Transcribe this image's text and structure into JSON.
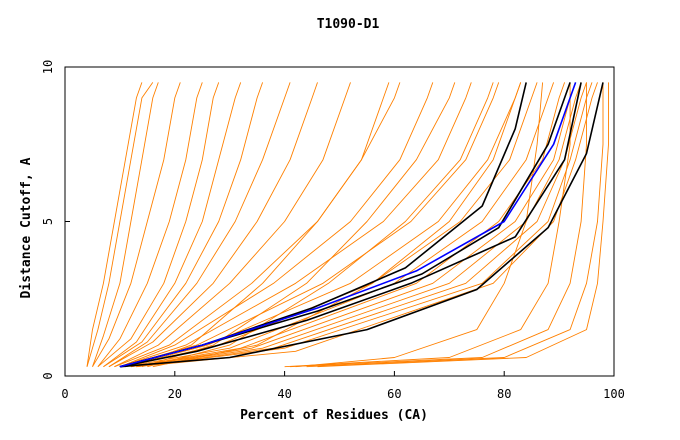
{
  "chart_data": {
    "type": "line",
    "title": "T1090-D1",
    "xlabel": "Percent of Residues (CA)",
    "ylabel": "Distance Cutoff, A",
    "xlim": [
      0,
      100
    ],
    "ylim": [
      0,
      10
    ],
    "x_ticks": [
      0,
      20,
      40,
      60,
      80,
      100
    ],
    "y_ticks": [
      0,
      5,
      10
    ],
    "grid": false,
    "legend": "none",
    "colors": {
      "models": "#ff8000",
      "highlight_a": "#000000",
      "highlight_b": "#0000ff"
    },
    "series": [
      {
        "group": "models",
        "x": [
          4,
          5,
          7,
          9,
          11,
          13,
          14
        ],
        "y": [
          0.3,
          1.5,
          3,
          5,
          7,
          9,
          9.5
        ]
      },
      {
        "group": "models",
        "x": [
          4,
          6,
          8,
          10,
          12,
          14,
          16
        ],
        "y": [
          0.3,
          1.5,
          3,
          5,
          7,
          9,
          9.5
        ]
      },
      {
        "group": "models",
        "x": [
          5,
          7,
          10,
          12,
          14,
          16,
          17
        ],
        "y": [
          0.3,
          1.3,
          3,
          5,
          7,
          9,
          9.5
        ]
      },
      {
        "group": "models",
        "x": [
          5,
          8,
          12,
          15,
          18,
          20,
          21
        ],
        "y": [
          0.3,
          1.2,
          3,
          5,
          7,
          9,
          9.5
        ]
      },
      {
        "group": "models",
        "x": [
          6,
          10,
          15,
          19,
          22,
          24,
          25
        ],
        "y": [
          0.3,
          1.2,
          3,
          5,
          7,
          9,
          9.5
        ]
      },
      {
        "group": "models",
        "x": [
          6,
          12,
          18,
          22,
          25,
          27,
          28
        ],
        "y": [
          0.3,
          1.2,
          3,
          5,
          7,
          9,
          9.5
        ]
      },
      {
        "group": "models",
        "x": [
          7,
          13,
          20,
          25,
          28,
          31,
          32
        ],
        "y": [
          0.3,
          1.1,
          3,
          5,
          7,
          9,
          9.5
        ]
      },
      {
        "group": "models",
        "x": [
          7,
          14,
          22,
          28,
          32,
          35,
          36
        ],
        "y": [
          0.3,
          1.1,
          3,
          5,
          7,
          9,
          9.5
        ]
      },
      {
        "group": "models",
        "x": [
          8,
          15,
          24,
          31,
          36,
          40,
          41
        ],
        "y": [
          0.3,
          1.1,
          3,
          5,
          7,
          9,
          9.5
        ]
      },
      {
        "group": "models",
        "x": [
          8,
          16,
          27,
          35,
          41,
          45,
          46
        ],
        "y": [
          0.3,
          1.1,
          3,
          5,
          7,
          9,
          9.5
        ]
      },
      {
        "group": "models",
        "x": [
          9,
          17,
          30,
          40,
          47,
          51,
          52
        ],
        "y": [
          0.3,
          1.0,
          3,
          5,
          7,
          9,
          9.5
        ]
      },
      {
        "group": "models",
        "x": [
          9,
          19,
          34,
          46,
          54,
          58,
          59
        ],
        "y": [
          0.3,
          1.0,
          3,
          5,
          7,
          9,
          9.5
        ]
      },
      {
        "group": "models",
        "x": [
          10,
          20,
          38,
          52,
          61,
          66,
          67
        ],
        "y": [
          0.3,
          1.0,
          3,
          5,
          7,
          9,
          9.5
        ]
      },
      {
        "group": "models",
        "x": [
          10,
          22,
          42,
          58,
          68,
          73,
          74
        ],
        "y": [
          0.3,
          1.0,
          3,
          5,
          7,
          9,
          9.5
        ]
      },
      {
        "group": "models",
        "x": [
          10,
          24,
          47,
          63,
          73,
          78,
          79
        ],
        "y": [
          0.3,
          1.0,
          3,
          5,
          7,
          9,
          9.5
        ]
      },
      {
        "group": "models",
        "x": [
          11,
          26,
          52,
          68,
          77,
          82,
          83
        ],
        "y": [
          0.3,
          1.0,
          3,
          5,
          7,
          9,
          9.5
        ]
      },
      {
        "group": "models",
        "x": [
          11,
          28,
          56,
          72,
          81,
          85,
          86
        ],
        "y": [
          0.3,
          1.0,
          3,
          5,
          7,
          9,
          9.5
        ]
      },
      {
        "group": "models",
        "x": [
          11,
          30,
          60,
          76,
          84,
          88,
          89
        ],
        "y": [
          0.3,
          0.9,
          3,
          5,
          7,
          9,
          9.5
        ]
      },
      {
        "group": "models",
        "x": [
          12,
          32,
          64,
          79,
          87,
          90,
          91
        ],
        "y": [
          0.3,
          0.9,
          3,
          5,
          7,
          9,
          9.5
        ]
      },
      {
        "group": "models",
        "x": [
          12,
          34,
          67,
          82,
          89,
          92,
          93
        ],
        "y": [
          0.3,
          0.9,
          3,
          5,
          7,
          9,
          9.5
        ]
      },
      {
        "group": "models",
        "x": [
          12,
          36,
          70,
          84,
          90,
          93,
          94
        ],
        "y": [
          0.3,
          0.9,
          3,
          5,
          7,
          9,
          9.5
        ]
      },
      {
        "group": "models",
        "x": [
          13,
          38,
          73,
          86,
          91,
          94,
          95
        ],
        "y": [
          0.3,
          0.9,
          3,
          5,
          7,
          9,
          9.5
        ]
      },
      {
        "group": "models",
        "x": [
          13,
          40,
          76,
          88,
          92,
          95,
          96
        ],
        "y": [
          0.3,
          0.9,
          3,
          5,
          7,
          9,
          9.5
        ]
      },
      {
        "group": "models",
        "x": [
          13,
          42,
          78,
          89,
          93,
          96,
          97
        ],
        "y": [
          0.3,
          0.8,
          3,
          5,
          7,
          9,
          9.5
        ]
      },
      {
        "group": "models",
        "x": [
          16,
          35,
          56,
          70,
          78,
          82,
          83
        ],
        "y": [
          0.3,
          1.0,
          3,
          5,
          7,
          9,
          9.5
        ]
      },
      {
        "group": "models",
        "x": [
          15,
          30,
          48,
          62,
          72,
          77,
          78
        ],
        "y": [
          0.3,
          1.0,
          3,
          5,
          7,
          9,
          9.5
        ]
      },
      {
        "group": "models",
        "x": [
          14,
          27,
          44,
          55,
          64,
          70,
          71
        ],
        "y": [
          0.3,
          1.0,
          3,
          5,
          7,
          9,
          9.5
        ]
      },
      {
        "group": "models",
        "x": [
          12,
          23,
          36,
          46,
          54,
          60,
          61
        ],
        "y": [
          0.3,
          1.0,
          3,
          5,
          7,
          9,
          9.5
        ]
      },
      {
        "group": "models",
        "x": [
          42,
          60,
          75,
          80,
          84,
          86,
          87
        ],
        "y": [
          0.3,
          0.6,
          1.5,
          3,
          5,
          7.5,
          9.5
        ]
      },
      {
        "group": "models",
        "x": [
          40,
          70,
          83,
          88,
          90,
          92,
          92
        ],
        "y": [
          0.3,
          0.6,
          1.5,
          3,
          5,
          7.5,
          9.5
        ]
      },
      {
        "group": "models",
        "x": [
          41,
          76,
          88,
          92,
          94,
          95,
          95
        ],
        "y": [
          0.3,
          0.6,
          1.5,
          3,
          5,
          7.5,
          9.5
        ]
      },
      {
        "group": "models",
        "x": [
          44,
          80,
          92,
          95,
          97,
          98,
          98
        ],
        "y": [
          0.3,
          0.6,
          1.5,
          3,
          5,
          7.5,
          9.5
        ]
      },
      {
        "group": "models",
        "x": [
          46,
          84,
          95,
          97,
          98,
          99,
          99
        ],
        "y": [
          0.3,
          0.6,
          1.5,
          3,
          5,
          7.5,
          9.5
        ]
      },
      {
        "group": "highlight_a",
        "x": [
          10,
          25,
          45,
          62,
          76,
          82,
          84
        ],
        "y": [
          0.3,
          1.0,
          2.2,
          3.5,
          5.5,
          8,
          9.5
        ]
      },
      {
        "group": "highlight_a",
        "x": [
          10,
          25,
          46,
          65,
          79,
          88,
          92
        ],
        "y": [
          0.3,
          1.0,
          2.1,
          3.3,
          4.8,
          7.5,
          9.5
        ]
      },
      {
        "group": "highlight_a",
        "x": [
          10,
          24,
          44,
          63,
          82,
          91,
          94
        ],
        "y": [
          0.3,
          0.8,
          1.8,
          3.0,
          4.5,
          7.0,
          9.5
        ]
      },
      {
        "group": "highlight_a",
        "x": [
          10,
          30,
          55,
          75,
          88,
          95,
          98
        ],
        "y": [
          0.3,
          0.6,
          1.5,
          2.8,
          4.8,
          7.2,
          9.5
        ]
      },
      {
        "group": "highlight_b",
        "x": [
          10,
          25,
          46,
          64,
          80,
          89,
          93
        ],
        "y": [
          0.3,
          1.0,
          2.2,
          3.4,
          5.0,
          7.5,
          9.5
        ]
      }
    ]
  }
}
